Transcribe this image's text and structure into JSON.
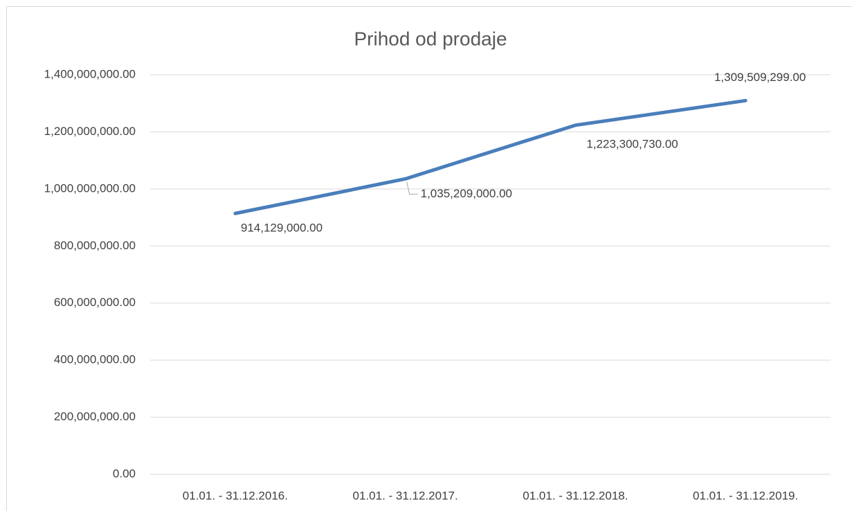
{
  "chart_data": {
    "type": "line",
    "title": "Prihod od prodaje",
    "categories": [
      "01.01. - 31.12.2016.",
      "01.01. - 31.12.2017.",
      "01.01. - 31.12.2018.",
      "01.01. - 31.12.2019."
    ],
    "values": [
      914129000,
      1035209000,
      1223300730,
      1309509299
    ],
    "value_labels": [
      "914,129,000.00",
      "1,035,209,000.00",
      "1,223,300,730.00",
      "1,309,509,299.00"
    ],
    "color": "#4a7ebb",
    "ylim": [
      0,
      1400000000
    ],
    "yticks": [
      {
        "value": 0,
        "label": "0.00"
      },
      {
        "value": 200000000,
        "label": "200,000,000.00"
      },
      {
        "value": 400000000,
        "label": "400,000,000.00"
      },
      {
        "value": 600000000,
        "label": "600,000,000.00"
      },
      {
        "value": 800000000,
        "label": "800,000,000.00"
      },
      {
        "value": 1000000000,
        "label": "1,000,000,000.00"
      },
      {
        "value": 1200000000,
        "label": "1,200,000,000.00"
      },
      {
        "value": 1400000000,
        "label": "1,400,000,000.00"
      }
    ],
    "grid": true
  }
}
